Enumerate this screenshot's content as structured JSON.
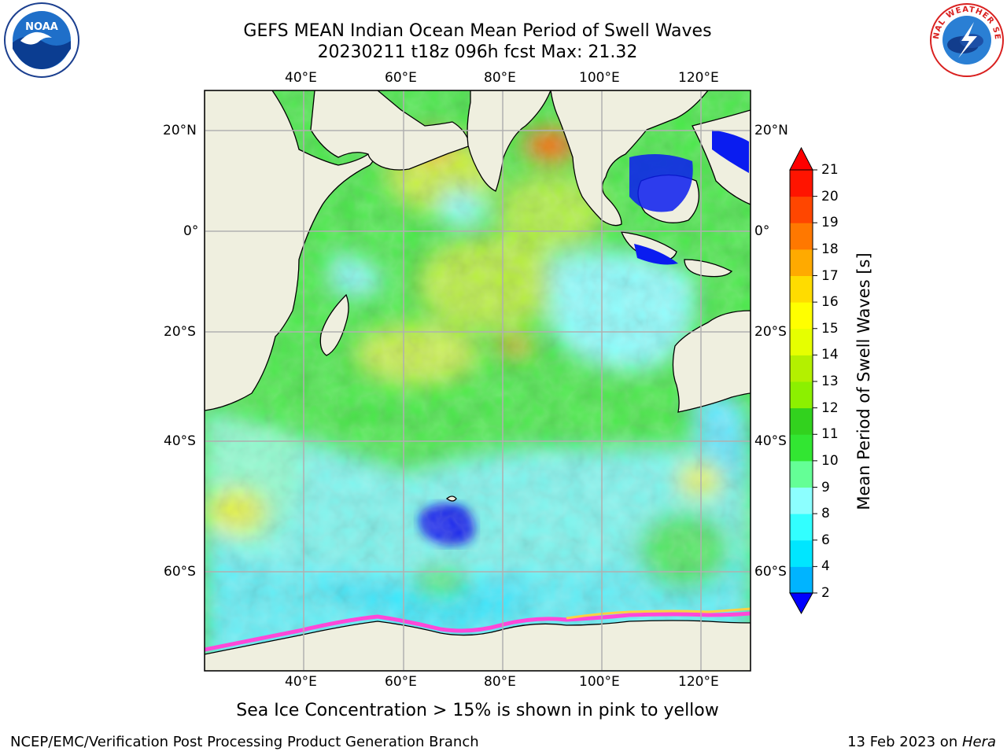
{
  "title_line1": "GEFS MEAN Indian Ocean Mean Period of Swell Waves",
  "title_line2": "20230211 t18z 096h fcst   Max: 21.32",
  "map": {
    "lon_ticks": [
      "40°E",
      "60°E",
      "80°E",
      "100°E",
      "120°E"
    ],
    "lat_ticks_left": [
      "20°N",
      "0°",
      "20°S",
      "40°S",
      "60°S"
    ],
    "lat_ticks_right": [
      "20°N",
      "0°",
      "20°S",
      "40°S",
      "60°S"
    ],
    "land_color": "#efefdf",
    "grid_color": "#b0b0b0"
  },
  "colorbar": {
    "title": "Mean Period of Swell Waves [s]",
    "levels": [
      "2",
      "4",
      "6",
      "8",
      "9",
      "10",
      "11",
      "12",
      "13",
      "14",
      "15",
      "16",
      "17",
      "18",
      "19",
      "20",
      "21"
    ],
    "colors": [
      "#0032ff",
      "#00b4ff",
      "#00e6ff",
      "#32ffff",
      "#8cffff",
      "#64ff96",
      "#32e632",
      "#32d21e",
      "#8cf000",
      "#b4f000",
      "#e6ff00",
      "#ffff00",
      "#ffdc00",
      "#ffaa00",
      "#ff7800",
      "#ff4600",
      "#ff1400"
    ],
    "under_color": "#0000ff",
    "over_color": "#ff0000"
  },
  "note": "Sea Ice Concentration > 15% is shown in pink to yellow",
  "footer_left": "NCEP/EMC/Verification Post Processing Product Generation Branch",
  "footer_right_prefix": "13 Feb 2023 on ",
  "footer_right_machine": "Hera",
  "logos": {
    "left": "NOAA",
    "right": "NATIONAL WEATHER SERVICE"
  }
}
